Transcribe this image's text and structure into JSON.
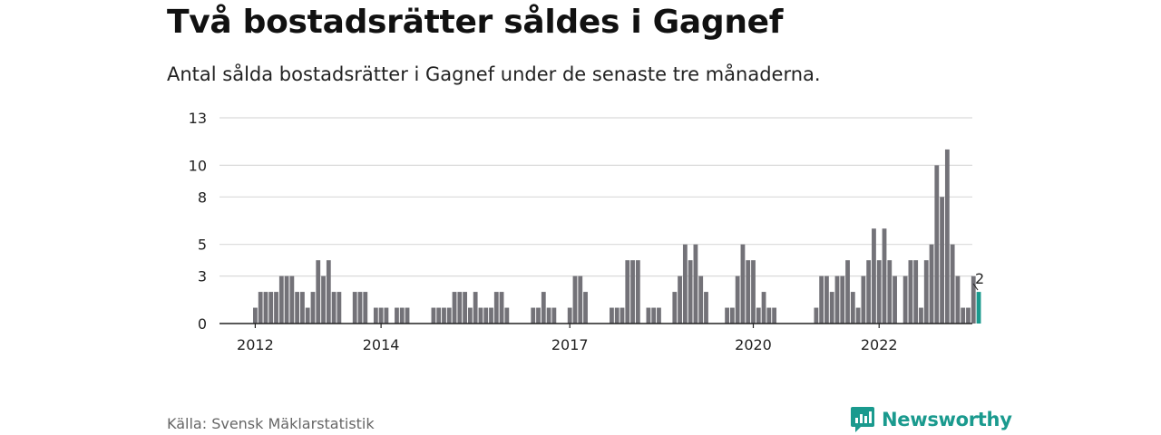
{
  "header": {
    "title": "Två bostadsrätter såldes i Gagnef",
    "subtitle": "Antal sålda bostadsrätter i Gagnef under de senaste tre månaderna."
  },
  "footer": {
    "source": "Källa: Svensk Mäklarstatistik",
    "brand": "Newsworthy"
  },
  "colors": {
    "bar": "#737278",
    "highlight": "#1a9a8e",
    "grid": "#d9d9d9",
    "axis": "#222222"
  },
  "chart_data": {
    "type": "bar",
    "title": "Två bostadsrätter såldes i Gagnef",
    "subtitle": "Antal sålda bostadsrätter i Gagnef under de senaste tre månaderna.",
    "xlabel": "",
    "ylabel": "",
    "ylim": [
      0,
      13
    ],
    "yticks": [
      0,
      3,
      5,
      8,
      10,
      13
    ],
    "x_tick_labels": [
      "2012",
      "2014",
      "2017",
      "2020",
      "2022"
    ],
    "grid": true,
    "legend": "none",
    "series": [
      {
        "values": [
          1,
          2,
          2,
          2,
          2,
          3,
          3,
          3,
          2,
          2,
          1,
          2,
          4,
          3,
          4,
          2,
          2,
          0,
          0,
          2,
          2,
          2,
          0,
          1,
          1,
          1,
          0,
          1,
          1,
          1,
          0,
          0,
          0,
          0,
          1,
          1,
          1,
          1,
          2,
          2,
          2,
          1,
          2,
          1,
          1,
          1,
          2,
          2,
          1,
          0,
          0,
          0,
          0,
          1,
          1,
          2,
          1,
          1,
          0,
          0,
          1,
          3,
          3,
          2,
          0,
          0,
          0,
          0,
          1,
          1,
          1,
          4,
          4,
          4,
          0,
          1,
          1,
          1,
          0,
          0,
          2,
          3,
          5,
          4,
          5,
          3,
          2,
          0,
          0,
          0,
          1,
          1,
          3,
          5,
          4,
          4,
          1,
          2,
          1,
          1,
          0,
          0,
          0,
          0,
          0,
          0,
          0,
          1,
          3,
          3,
          2,
          3,
          3,
          4,
          2,
          1,
          3,
          4,
          6,
          4,
          6,
          4,
          3,
          0,
          3,
          4,
          4,
          1,
          4,
          5,
          10,
          8,
          11,
          5,
          3,
          1,
          1,
          3,
          2
        ],
        "highlight_last": true,
        "last_label": "2"
      }
    ]
  }
}
